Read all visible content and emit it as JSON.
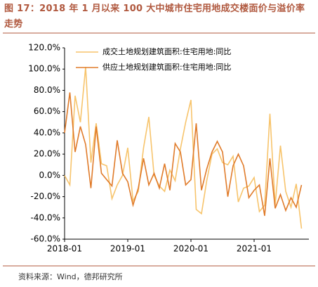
{
  "chart_data": {
    "type": "line",
    "title": "图 17：2018 年 1 月以来 100 大中城市住宅用地成交楼面价与溢价率走势",
    "source": "资料来源：Wind，德邦研究所",
    "categories": [
      "2018-01",
      null,
      null,
      null,
      null,
      null,
      null,
      null,
      null,
      null,
      null,
      null,
      "2019-01",
      null,
      null,
      null,
      null,
      null,
      null,
      null,
      null,
      null,
      null,
      null,
      "2020-01",
      null,
      null,
      null,
      null,
      null,
      null,
      null,
      null,
      null,
      null,
      null,
      "2021-01",
      null,
      null,
      null,
      null,
      null,
      null,
      null,
      null,
      null
    ],
    "series": [
      {
        "name": "成交土地规划建筑面积:住宅用地:同比",
        "color": "#f7c46c",
        "values": [
          0,
          -9,
          75,
          50,
          102,
          12,
          49,
          11,
          9,
          -22,
          -9,
          0,
          26,
          -24,
          -15,
          26,
          55,
          0,
          -10,
          -15,
          5,
          -5,
          25,
          50,
          71,
          -32,
          -36,
          -5,
          20,
          25,
          12,
          10,
          18,
          -25,
          -12,
          -10,
          -2,
          -34,
          -28,
          58,
          -28,
          28,
          -15,
          -30,
          -8,
          -50
        ]
      },
      {
        "name": "供应土地规划建筑面积:住宅用地:同比",
        "color": "#e07b2a",
        "values": [
          40,
          78,
          22,
          46,
          29,
          -12,
          46,
          2,
          -4,
          -10,
          33,
          2,
          -6,
          -28,
          -12,
          16,
          -9,
          2,
          -12,
          11,
          -14,
          30,
          22,
          -9,
          -4,
          49,
          -14,
          6,
          22,
          32,
          22,
          -20,
          9,
          20,
          9,
          -21,
          -14,
          -9,
          -38,
          16,
          -31,
          -18,
          -33,
          -21,
          -30,
          -9
        ]
      }
    ],
    "ylim": [
      -60,
      120
    ],
    "yticks": [
      {
        "value": -60,
        "label": "-60.0%"
      },
      {
        "value": -40,
        "label": "-40.0%"
      },
      {
        "value": -20,
        "label": "-20.0%"
      },
      {
        "value": 0,
        "label": "0.0%"
      },
      {
        "value": 20,
        "label": "20.0%"
      },
      {
        "value": 40,
        "label": "40.0%"
      },
      {
        "value": 60,
        "label": "60.0%"
      },
      {
        "value": 80,
        "label": "80.0%"
      },
      {
        "value": 100,
        "label": "100.0%"
      },
      {
        "value": 120,
        "label": "120.0%"
      }
    ],
    "legend": "upper left"
  }
}
